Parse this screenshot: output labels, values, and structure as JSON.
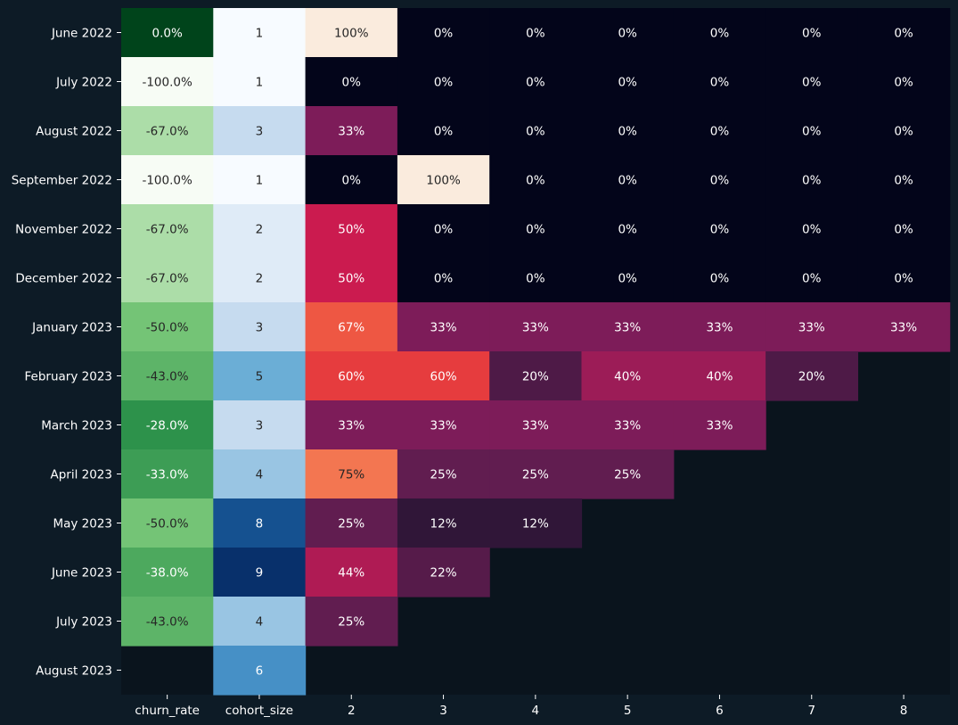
{
  "chart_data": {
    "type": "heatmap",
    "title": "",
    "xlabel": "",
    "ylabel": "",
    "rows": [
      "June 2022",
      "July 2022",
      "August 2022",
      "September 2022",
      "November 2022",
      "December 2022",
      "January 2023",
      "February 2023",
      "March 2023",
      "April 2023",
      "May 2023",
      "June 2023",
      "July 2023",
      "August 2023"
    ],
    "columns": [
      "churn_rate",
      "cohort_size",
      "2",
      "3",
      "4",
      "5",
      "6",
      "7",
      "8"
    ],
    "churn_rate": [
      0.0,
      -100.0,
      -67.0,
      -100.0,
      -67.0,
      -67.0,
      -50.0,
      -43.0,
      -28.0,
      -33.0,
      -50.0,
      -38.0,
      -43.0,
      null
    ],
    "cohort_size": [
      1,
      1,
      3,
      1,
      2,
      2,
      3,
      5,
      3,
      4,
      8,
      9,
      4,
      6
    ],
    "retention": [
      [
        100,
        0,
        0,
        0,
        0,
        0,
        0
      ],
      [
        0,
        0,
        0,
        0,
        0,
        0,
        0
      ],
      [
        33,
        0,
        0,
        0,
        0,
        0,
        0
      ],
      [
        0,
        100,
        0,
        0,
        0,
        0,
        0
      ],
      [
        50,
        0,
        0,
        0,
        0,
        0,
        0
      ],
      [
        50,
        0,
        0,
        0,
        0,
        0,
        0
      ],
      [
        67,
        33,
        33,
        33,
        33,
        33,
        33
      ],
      [
        60,
        60,
        20,
        40,
        40,
        20,
        null
      ],
      [
        33,
        33,
        33,
        33,
        33,
        null,
        null
      ],
      [
        75,
        25,
        25,
        25,
        null,
        null,
        null
      ],
      [
        25,
        12,
        12,
        null,
        null,
        null,
        null
      ],
      [
        44,
        22,
        null,
        null,
        null,
        null,
        null
      ],
      [
        25,
        null,
        null,
        null,
        null,
        null,
        null
      ],
      [
        null,
        null,
        null,
        null,
        null,
        null,
        null
      ]
    ],
    "colormaps": {
      "churn_rate": "greens",
      "cohort_size": "blues",
      "retention": "rocket"
    },
    "colors": {
      "background": "#0d1b26",
      "plot_background": "#0a141d",
      "tick_color": "#ffffff"
    }
  }
}
